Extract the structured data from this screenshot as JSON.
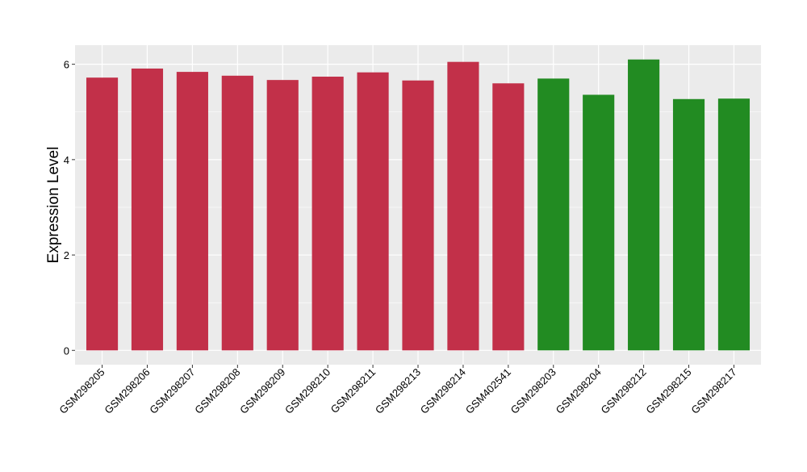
{
  "chart_data": {
    "type": "bar",
    "title": "",
    "xlabel": "",
    "ylabel": "Expression Level",
    "ylim": [
      -0.3,
      6.4
    ],
    "yticks": [
      0,
      2,
      4,
      6
    ],
    "grid": true,
    "legend": "none",
    "categories": [
      "GSM298205",
      "GSM298206",
      "GSM298207",
      "GSM298208",
      "GSM298209",
      "GSM298210",
      "GSM298211",
      "GSM298213",
      "GSM298214",
      "GSM402541",
      "GSM298203",
      "GSM298204",
      "GSM298212",
      "GSM298215",
      "GSM298217"
    ],
    "values": [
      5.72,
      5.91,
      5.84,
      5.76,
      5.67,
      5.74,
      5.83,
      5.66,
      6.05,
      5.6,
      5.7,
      5.36,
      6.1,
      5.27,
      5.28
    ],
    "bar_colors": [
      "#c23049",
      "#c23049",
      "#c23049",
      "#c23049",
      "#c23049",
      "#c23049",
      "#c23049",
      "#c23049",
      "#c23049",
      "#c23049",
      "#228b22",
      "#228b22",
      "#228b22",
      "#228b22",
      "#228b22"
    ]
  },
  "colors": {
    "panel_background": "#ebebeb",
    "grid": "#ffffff",
    "tick": "#333333",
    "axis_text": "#000000"
  }
}
